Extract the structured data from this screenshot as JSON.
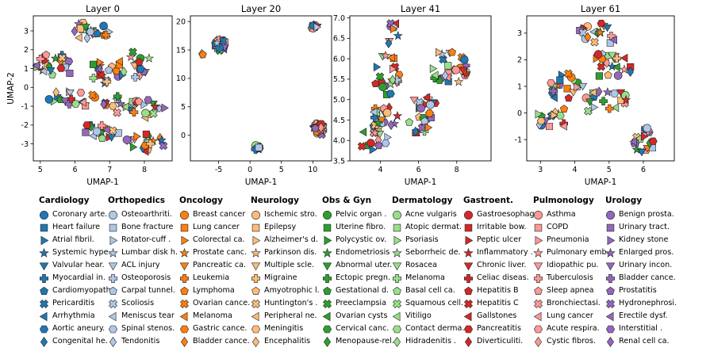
{
  "chart_data": {
    "type": "scatter",
    "panels": [
      {
        "title": "Layer 0",
        "xlabel": "UMAP-1",
        "ylabel": "UMAP-2",
        "xlim": [
          4.8,
          8.8
        ],
        "ylim": [
          -3.9,
          3.8
        ],
        "xticks": [
          5,
          6,
          7,
          8
        ],
        "yticks": [
          -3,
          -2,
          -1,
          0,
          1,
          2,
          3
        ],
        "clusters": [
          {
            "cx": 6.3,
            "cy": 3.0,
            "rx": 0.7,
            "ry": 0.5,
            "n": 22
          },
          {
            "cx": 5.4,
            "cy": 1.2,
            "rx": 0.6,
            "ry": 0.7,
            "n": 22
          },
          {
            "cx": 6.8,
            "cy": 0.8,
            "rx": 0.6,
            "ry": 0.6,
            "n": 20
          },
          {
            "cx": 7.7,
            "cy": 1.2,
            "rx": 0.5,
            "ry": 0.8,
            "n": 18
          },
          {
            "cx": 5.9,
            "cy": -0.5,
            "rx": 0.7,
            "ry": 0.7,
            "n": 18
          },
          {
            "cx": 7.3,
            "cy": -0.9,
            "rx": 0.5,
            "ry": 0.5,
            "n": 14
          },
          {
            "cx": 8.1,
            "cy": -1.2,
            "rx": 0.5,
            "ry": 0.6,
            "n": 14
          },
          {
            "cx": 6.8,
            "cy": -2.3,
            "rx": 0.6,
            "ry": 0.6,
            "n": 16
          },
          {
            "cx": 8.0,
            "cy": -2.9,
            "rx": 0.6,
            "ry": 0.5,
            "n": 18
          }
        ]
      },
      {
        "title": "Layer 20",
        "xlabel": "UMAP-1",
        "ylabel": "",
        "xlim": [
          -9.5,
          13
        ],
        "ylim": [
          -4.5,
          21
        ],
        "xticks": [
          -5,
          0,
          5,
          10
        ],
        "yticks": [
          0,
          5,
          10,
          15,
          20
        ],
        "clusters": [
          {
            "cx": -4.8,
            "cy": 16.0,
            "rx": 0.9,
            "ry": 1.2,
            "n": 26
          },
          {
            "cx": -7.8,
            "cy": 14.2,
            "rx": 0.3,
            "ry": 0.3,
            "n": 2
          },
          {
            "cx": 10.2,
            "cy": 19.0,
            "rx": 0.6,
            "ry": 0.4,
            "n": 12
          },
          {
            "cx": 1.1,
            "cy": -2.1,
            "rx": 0.5,
            "ry": 0.6,
            "n": 14
          },
          {
            "cx": 10.9,
            "cy": 1.0,
            "rx": 0.9,
            "ry": 1.1,
            "n": 40
          }
        ]
      },
      {
        "title": "Layer 41",
        "xlabel": "UMAP-1",
        "ylabel": "",
        "xlim": [
          2.4,
          9.8
        ],
        "ylim": [
          3.5,
          7.05
        ],
        "xticks": [
          4,
          6,
          8
        ],
        "yticks": [
          3.5,
          4.0,
          4.5,
          5.0,
          5.5,
          6.0,
          6.5,
          7.0
        ],
        "clusters": [
          {
            "cx": 4.7,
            "cy": 6.6,
            "rx": 0.5,
            "ry": 0.3,
            "n": 8
          },
          {
            "cx": 4.3,
            "cy": 5.6,
            "rx": 0.8,
            "ry": 0.5,
            "n": 22
          },
          {
            "cx": 7.6,
            "cy": 5.8,
            "rx": 1.0,
            "ry": 0.45,
            "n": 28
          },
          {
            "cx": 4.2,
            "cy": 4.4,
            "rx": 0.8,
            "ry": 0.5,
            "n": 24
          },
          {
            "cx": 6.2,
            "cy": 4.6,
            "rx": 1.0,
            "ry": 0.5,
            "n": 26
          },
          {
            "cx": 3.5,
            "cy": 4.0,
            "rx": 0.6,
            "ry": 0.3,
            "n": 10
          }
        ]
      },
      {
        "title": "Layer 61",
        "xlabel": "UMAP-1",
        "ylabel": "",
        "xlim": [
          2.6,
          6.9
        ],
        "ylim": [
          -1.8,
          3.65
        ],
        "xticks": [
          3,
          4,
          5,
          6
        ],
        "yticks": [
          -1,
          0,
          1,
          2,
          3
        ],
        "clusters": [
          {
            "cx": 4.8,
            "cy": 3.0,
            "rx": 0.7,
            "ry": 0.4,
            "n": 18
          },
          {
            "cx": 5.1,
            "cy": 1.8,
            "rx": 0.7,
            "ry": 0.5,
            "n": 22
          },
          {
            "cx": 3.7,
            "cy": 1.0,
            "rx": 0.6,
            "ry": 0.5,
            "n": 20
          },
          {
            "cx": 3.4,
            "cy": -0.2,
            "rx": 0.6,
            "ry": 0.4,
            "n": 16
          },
          {
            "cx": 4.9,
            "cy": 0.4,
            "rx": 0.7,
            "ry": 0.5,
            "n": 18
          },
          {
            "cx": 6.0,
            "cy": -1.0,
            "rx": 0.5,
            "ry": 0.5,
            "n": 20
          }
        ]
      }
    ],
    "legend_groups": [
      {
        "title": "Cardiology",
        "color": "#1f77b4",
        "items": [
          "Coronary arte.",
          "Heart failure",
          "Atrial fibril.",
          "Systemic hype.",
          "Valvular hear.",
          "Myocardial in.",
          "Cardiomyopath.",
          "Pericarditis",
          "Arrhythmia",
          "Aortic aneury.",
          "Congenital he."
        ]
      },
      {
        "title": "Orthopedics",
        "color": "#aec7e8",
        "items": [
          "Osteoarthriti.",
          "Bone fracture",
          "Rotator-cuff .",
          "Lumbar disk h.",
          "ACL injury",
          "Osteoporosis",
          "Carpal tunnel.",
          "Scoliosis",
          "Meniscus tear",
          "Spinal stenos.",
          "Tendonitis"
        ]
      },
      {
        "title": "Oncology",
        "color": "#ff7f0e",
        "items": [
          "Breast cancer",
          "Lung cancer",
          "Colorectal ca.",
          "Prostate canc.",
          "Pancreatic ca.",
          "Leukemia",
          "Lymphoma",
          "Ovarian cance.",
          "Melanoma",
          "Gastric cance.",
          "Bladder cance."
        ]
      },
      {
        "title": "Neurology",
        "color": "#ffbb78",
        "items": [
          "Ischemic stro.",
          "Epilepsy",
          "Alzheimer's d.",
          "Parkinson dis.",
          "Multiple scle.",
          "Migraine",
          "Amyotrophic l.",
          "Huntington's .",
          "Peripheral ne.",
          "Meningitis",
          "Encephalitis"
        ]
      },
      {
        "title": "Obs & Gyn",
        "color": "#2ca02c",
        "items": [
          "Pelvic organ .",
          "Uterine fibro.",
          "Polycystic ov.",
          "Endometriosis",
          "Abnormal uter.",
          "Ectopic pregn.",
          "Gestational d.",
          "Preeclampsia",
          "Ovarian cysts",
          "Cervical canc.",
          "Menopause-rel."
        ]
      },
      {
        "title": "Dermatology",
        "color": "#98df8a",
        "items": [
          "Acne vulgaris",
          "Atopic dermat.",
          "Psoriasis",
          "Seborrheic de.",
          "Rosacea",
          "Melanoma",
          "Basal cell ca.",
          "Squamous cell.",
          "Vitiligo",
          "Contact derma.",
          "Hidradenitis ."
        ]
      },
      {
        "title": "Gastroent.",
        "color": "#d62728",
        "items": [
          "Gastroesophag.",
          "Irritable bow.",
          "Peptic ulcer",
          "Inflammatory .",
          "Chronic liver.",
          "Celiac diseas.",
          "Hepatitis B",
          "Hepatitis C",
          "Gallstones",
          "Pancreatitis",
          "Diverticuliti."
        ]
      },
      {
        "title": "Pulmonology",
        "color": "#ff9896",
        "items": [
          "Asthma",
          "COPD",
          "Pneumonia",
          "Pulmonary emb.",
          "Idiopathic pu.",
          "Tuberculosis",
          "Sleep apnea",
          "Bronchiectasi.",
          "Lung cancer",
          "Acute respira.",
          "Cystic fibros."
        ]
      },
      {
        "title": "Urology",
        "color": "#9467bd",
        "items": [
          "Benign prosta.",
          "Urinary tract.",
          "Kidney stone",
          "Enlarged pros.",
          "Urinary incon.",
          "Bladder cance.",
          "Prostatitis",
          "Hydronephrosi.",
          "Erectile dysf.",
          "Interstitial .",
          "Renal cell ca."
        ]
      }
    ],
    "marker_sequence": [
      "circle",
      "square",
      "triangle-right",
      "star",
      "triangle-down",
      "plus",
      "pentagon",
      "x",
      "triangle-left",
      "hexagon",
      "diamond"
    ],
    "grid": false,
    "legend_placement": "bottom"
  }
}
